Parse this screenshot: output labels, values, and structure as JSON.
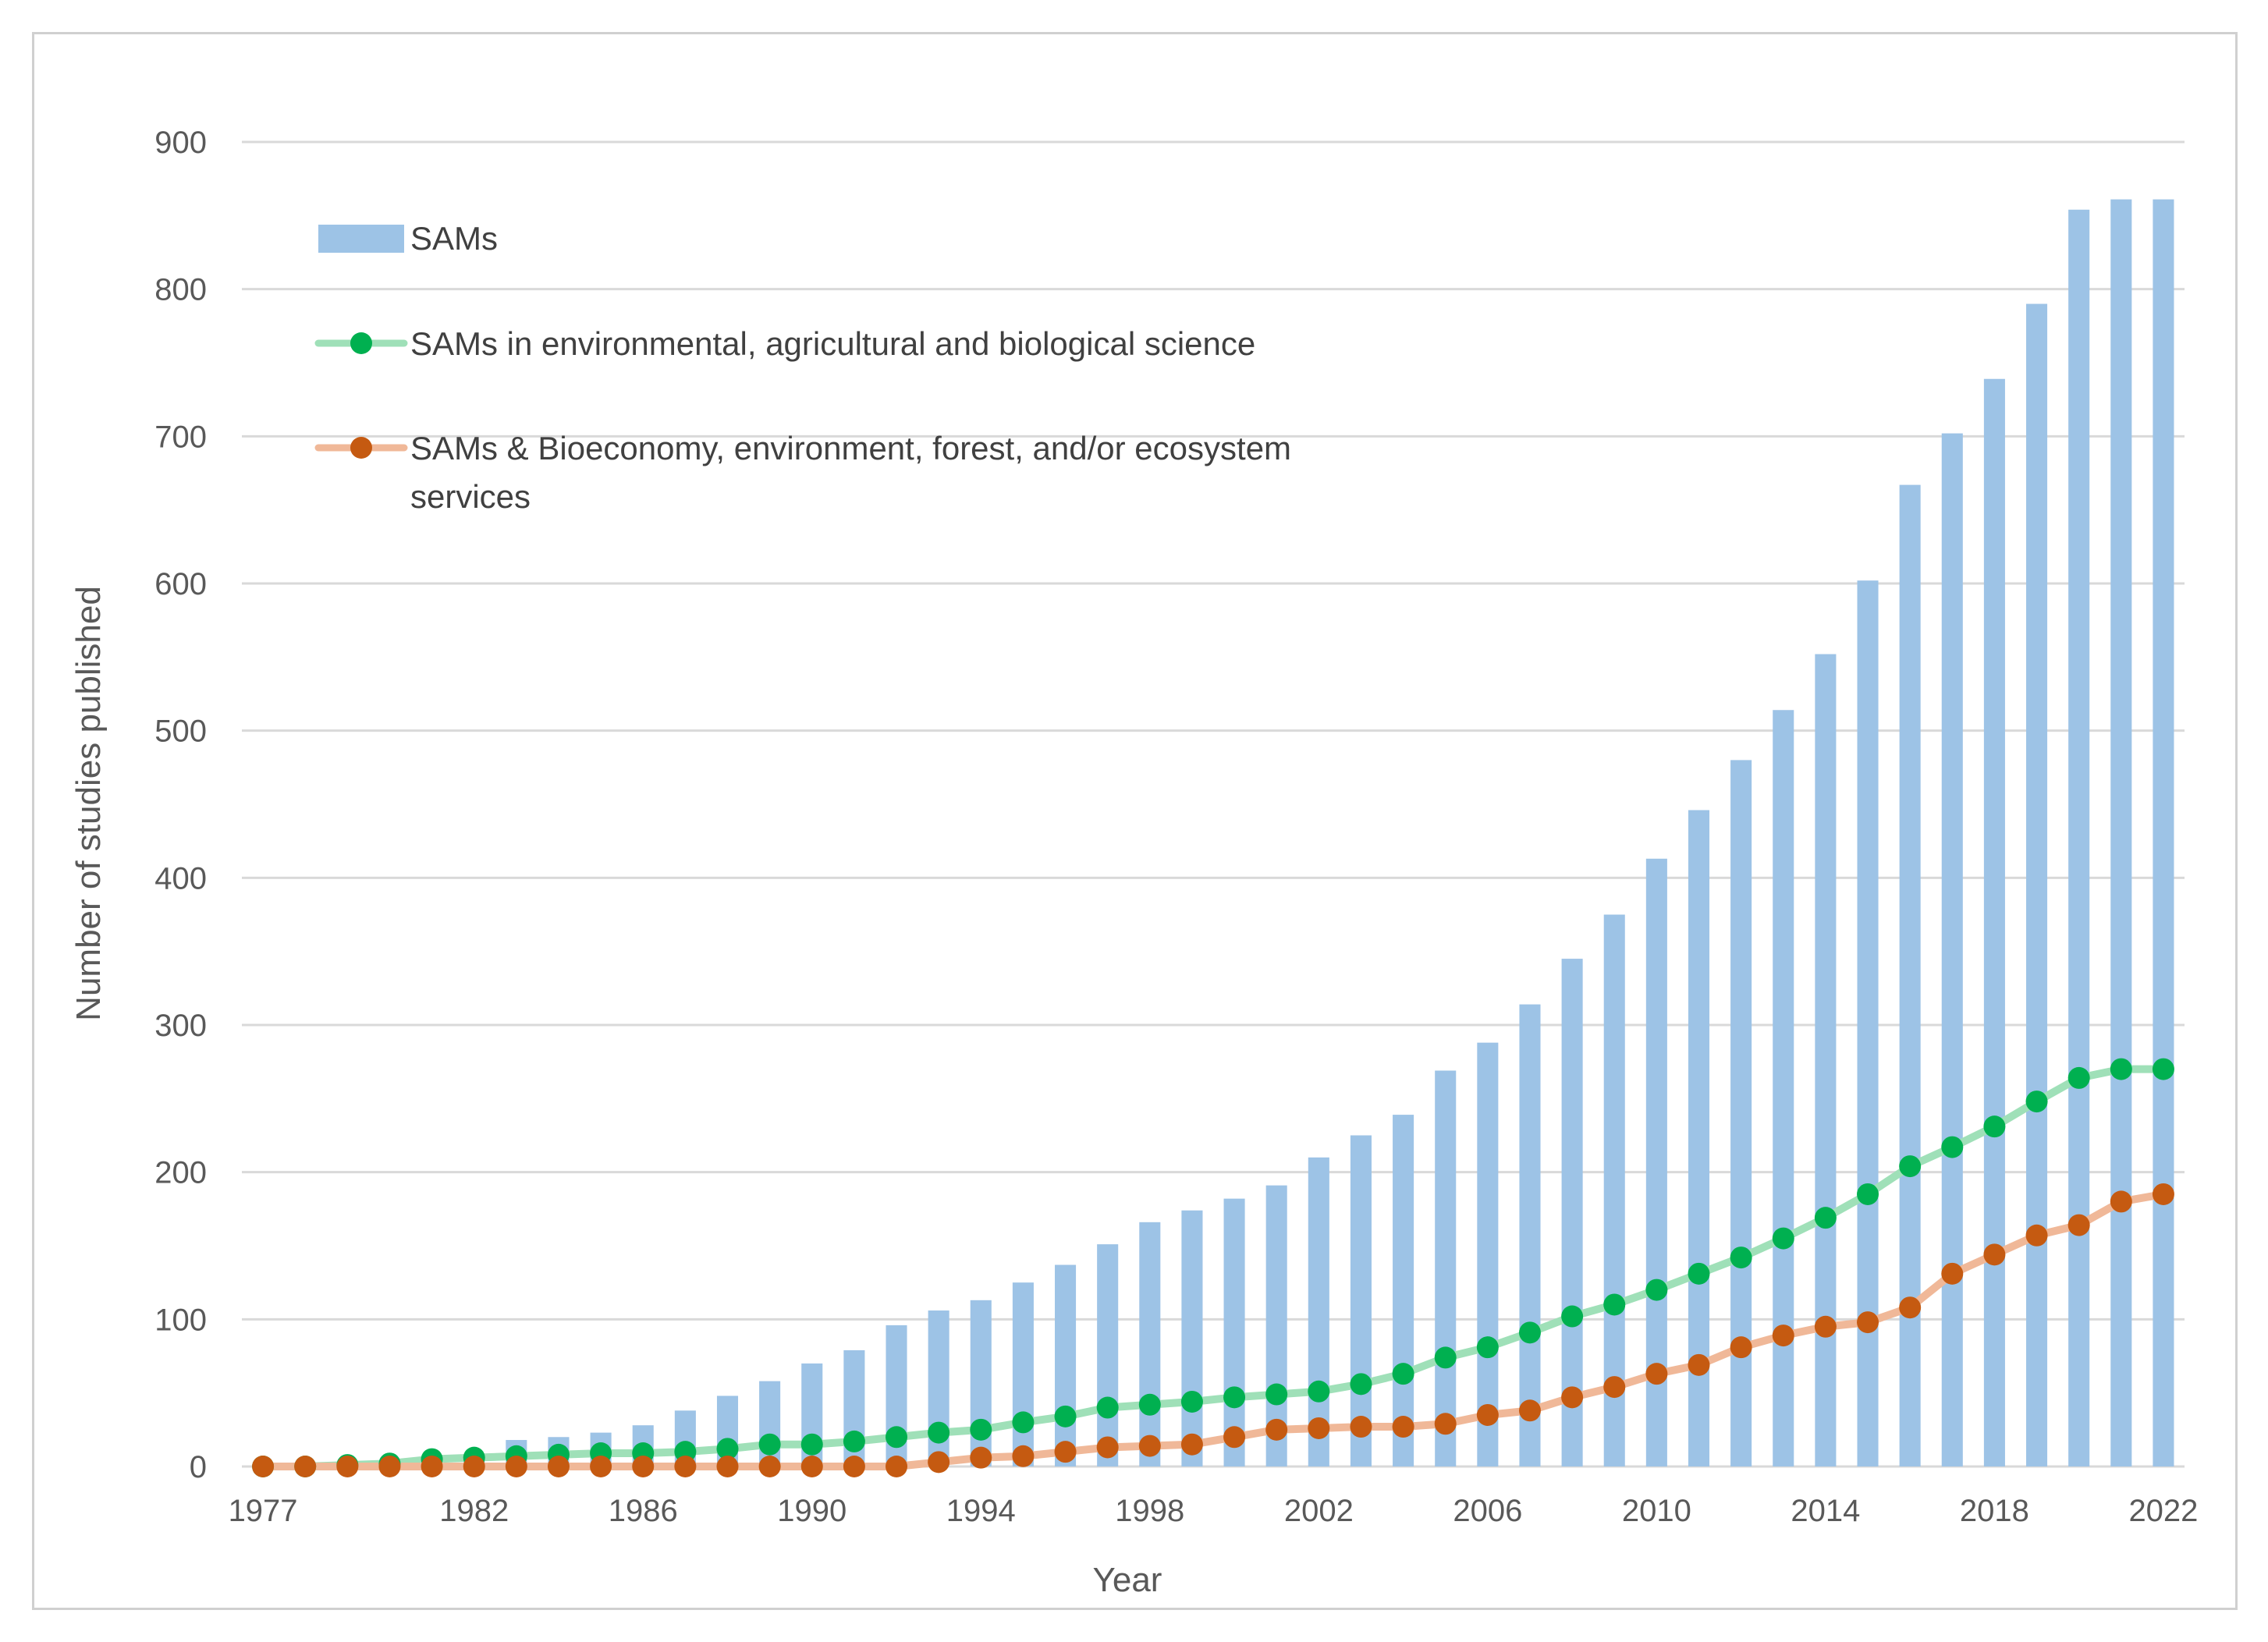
{
  "chart_data": {
    "type": "bar",
    "title": "",
    "xlabel": "Year",
    "ylabel": "Number of studies published",
    "ylim": [
      0,
      900
    ],
    "yticks": [
      0,
      100,
      200,
      300,
      400,
      500,
      600,
      700,
      800,
      900
    ],
    "xtick_labels": [
      "1977",
      "1982",
      "1986",
      "1990",
      "1994",
      "1998",
      "2002",
      "2006",
      "2010",
      "2014",
      "2018",
      "2022"
    ],
    "grid": true,
    "legend_position": "top-left",
    "categories": [
      1977,
      1978,
      1979,
      1980,
      1981,
      1982,
      1983,
      1984,
      1985,
      1986,
      1987,
      1988,
      1989,
      1990,
      1991,
      1992,
      1993,
      1994,
      1995,
      1996,
      1997,
      1998,
      1999,
      2000,
      2001,
      2002,
      2003,
      2004,
      2005,
      2006,
      2007,
      2008,
      2009,
      2010,
      2011,
      2012,
      2013,
      2014,
      2015,
      2016,
      2017,
      2018,
      2019,
      2020,
      2021,
      2022
    ],
    "series": [
      {
        "name": "SAMs",
        "type": "bar",
        "color": "#9dc3e6",
        "values": [
          0,
          0,
          1,
          2,
          5,
          8,
          18,
          20,
          23,
          28,
          38,
          48,
          58,
          70,
          79,
          96,
          106,
          113,
          125,
          137,
          151,
          166,
          174,
          182,
          191,
          210,
          225,
          239,
          269,
          288,
          314,
          345,
          375,
          413,
          446,
          480,
          514,
          552,
          602,
          667,
          702,
          739,
          790,
          854,
          861,
          861
        ]
      },
      {
        "name": "SAMs in environmental, agricultural and biological science",
        "type": "line",
        "color": "#00b050",
        "line_color": "#9fe0b8",
        "values": [
          0,
          0,
          1,
          2,
          5,
          6,
          7,
          8,
          9,
          9,
          10,
          12,
          15,
          15,
          17,
          20,
          23,
          25,
          30,
          34,
          40,
          42,
          44,
          47,
          49,
          51,
          56,
          63,
          74,
          81,
          91,
          102,
          110,
          120,
          131,
          142,
          155,
          169,
          185,
          204,
          217,
          231,
          248,
          264,
          270,
          270
        ]
      },
      {
        "name": "SAMs & Bioeconomy, environment, forest, and/or ecosystem services",
        "type": "line",
        "color": "#c55a11",
        "line_color": "#f0b898",
        "values": [
          0,
          0,
          0,
          0,
          0,
          0,
          0,
          0,
          0,
          0,
          0,
          0,
          0,
          0,
          0,
          0,
          3,
          6,
          7,
          10,
          13,
          14,
          15,
          20,
          25,
          26,
          27,
          27,
          29,
          35,
          38,
          47,
          54,
          63,
          69,
          81,
          89,
          95,
          98,
          108,
          131,
          144,
          157,
          164,
          180,
          185
        ]
      }
    ],
    "legend": [
      {
        "label": "SAMs"
      },
      {
        "label": "SAMs in environmental, agricultural and biological science"
      },
      {
        "label_line1": "SAMs & Bioeconomy, environment, forest, and/or ecosystem",
        "label_line2": "services"
      }
    ]
  }
}
